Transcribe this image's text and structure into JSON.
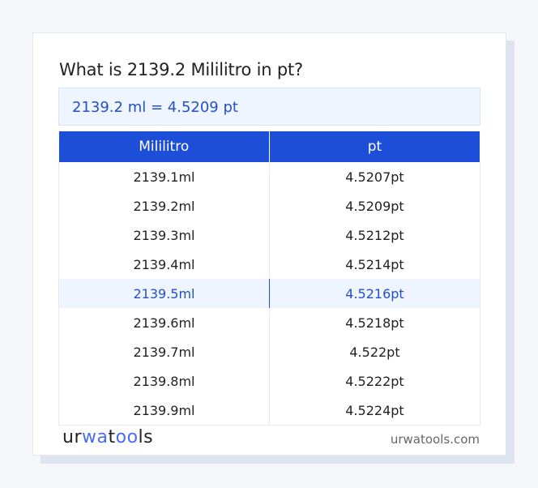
{
  "title": "What is 2139.2 Mililitro in pt?",
  "result": "2139.2 ml = 4.5209 pt",
  "table": {
    "headers": [
      "Mililitro",
      "pt"
    ],
    "rows": [
      [
        "2139.1ml",
        "4.5207pt"
      ],
      [
        "2139.2ml",
        "4.5209pt"
      ],
      [
        "2139.3ml",
        "4.5212pt"
      ],
      [
        "2139.4ml",
        "4.5214pt"
      ],
      [
        "2139.5ml",
        "4.5216pt"
      ],
      [
        "2139.6ml",
        "4.5218pt"
      ],
      [
        "2139.7ml",
        "4.522pt"
      ],
      [
        "2139.8ml",
        "4.5222pt"
      ],
      [
        "2139.9ml",
        "4.5224pt"
      ]
    ],
    "highlighted_row": 4
  },
  "footer": {
    "logo_parts": [
      "ur",
      "wa",
      "t",
      "oo",
      "ls"
    ],
    "site": "urwatools.com"
  },
  "colors": {
    "accent": "#1d4ed8",
    "highlight_bg": "#eef5fe",
    "highlight_text": "#2450c4"
  }
}
